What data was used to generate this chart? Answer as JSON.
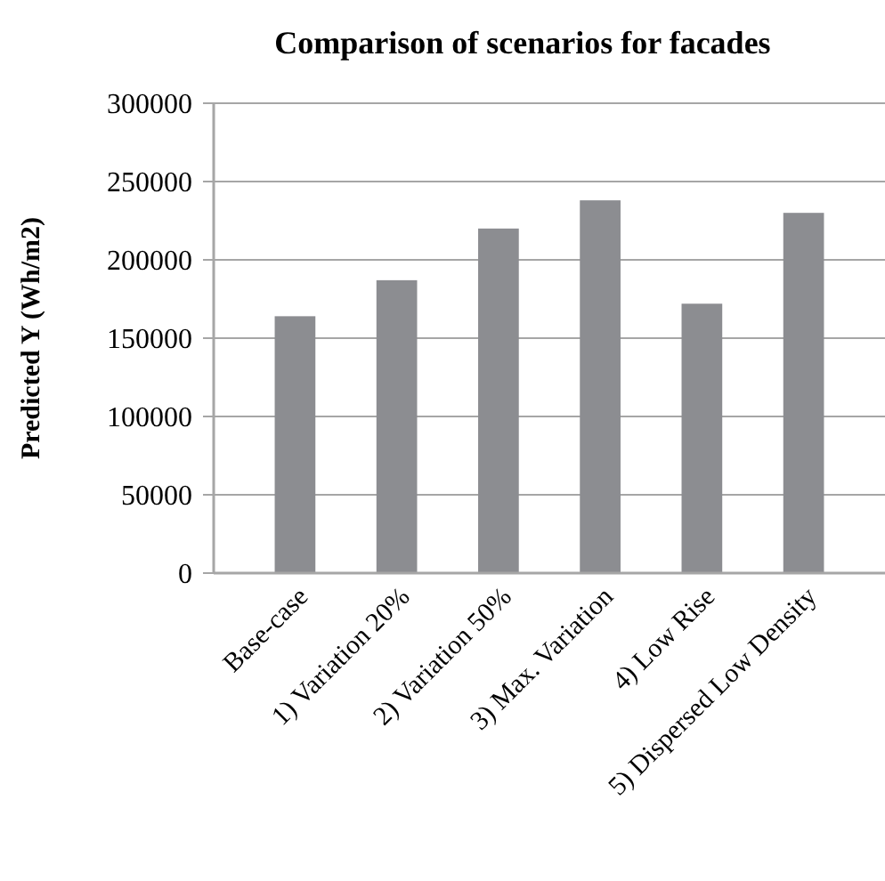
{
  "chart_data": {
    "type": "bar",
    "title": "Comparison of scenarios for facades",
    "ylabel": "Predicted Y (Wh/m2)",
    "categories": [
      "Base-case",
      "1) Variation 20%",
      "2) Variation 50%",
      "3) Max. Variation",
      "4) Low Rise",
      "5) Dispersed Low Density"
    ],
    "values": [
      164000,
      187000,
      220000,
      238000,
      172000,
      230000
    ],
    "color": "#8c8d91",
    "ylim": [
      0,
      300000
    ],
    "yticks": [
      0,
      50000,
      100000,
      150000,
      200000,
      250000,
      300000
    ],
    "grid": "y"
  }
}
